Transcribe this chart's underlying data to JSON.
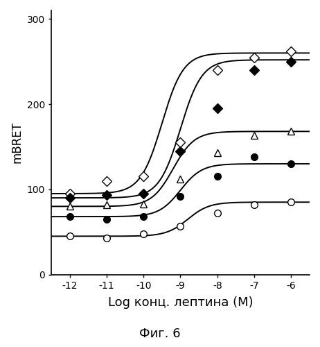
{
  "xlabel": "Log конц. лептина (М)",
  "fig_label": "Фиг. 6",
  "ylabel": "mBRET",
  "xlim": [
    -12.5,
    -5.5
  ],
  "ylim": [
    0,
    310
  ],
  "xticks": [
    -12,
    -11,
    -10,
    -9,
    -8,
    -7,
    -6
  ],
  "yticks": [
    0,
    100,
    200,
    300
  ],
  "series": [
    {
      "name": "open_diamond",
      "marker": "D",
      "filled": false,
      "baseline": 95,
      "top": 260,
      "ec50_log": -9.5,
      "hill": 1.5,
      "data_x": [
        -12,
        -11,
        -10,
        -9,
        -8,
        -7,
        -6
      ],
      "data_y": [
        95,
        110,
        115,
        155,
        240,
        255,
        262
      ]
    },
    {
      "name": "filled_diamond",
      "marker": "D",
      "filled": true,
      "baseline": 90,
      "top": 252,
      "ec50_log": -9.0,
      "hill": 1.5,
      "data_x": [
        -12,
        -11,
        -10,
        -9,
        -8,
        -7,
        -6
      ],
      "data_y": [
        90,
        93,
        95,
        145,
        195,
        240,
        250
      ]
    },
    {
      "name": "open_triangle",
      "marker": "^",
      "filled": false,
      "baseline": 80,
      "top": 168,
      "ec50_log": -9.2,
      "hill": 1.5,
      "data_x": [
        -12,
        -11,
        -10,
        -9,
        -8,
        -7,
        -6
      ],
      "data_y": [
        80,
        82,
        83,
        112,
        143,
        163,
        168
      ]
    },
    {
      "name": "filled_circle",
      "marker": "o",
      "filled": true,
      "baseline": 68,
      "top": 130,
      "ec50_log": -9.0,
      "hill": 1.5,
      "data_x": [
        -12,
        -11,
        -10,
        -9,
        -8,
        -7,
        -6
      ],
      "data_y": [
        68,
        65,
        68,
        92,
        115,
        138,
        130
      ]
    },
    {
      "name": "open_circle",
      "marker": "o",
      "filled": false,
      "baseline": 45,
      "top": 85,
      "ec50_log": -8.8,
      "hill": 1.5,
      "data_x": [
        -12,
        -11,
        -10,
        -9,
        -8,
        -7,
        -6
      ],
      "data_y": [
        45,
        43,
        48,
        57,
        72,
        82,
        85
      ]
    }
  ],
  "background_color": "#ffffff",
  "line_color": "black",
  "line_width": 1.4,
  "marker_size": 7
}
